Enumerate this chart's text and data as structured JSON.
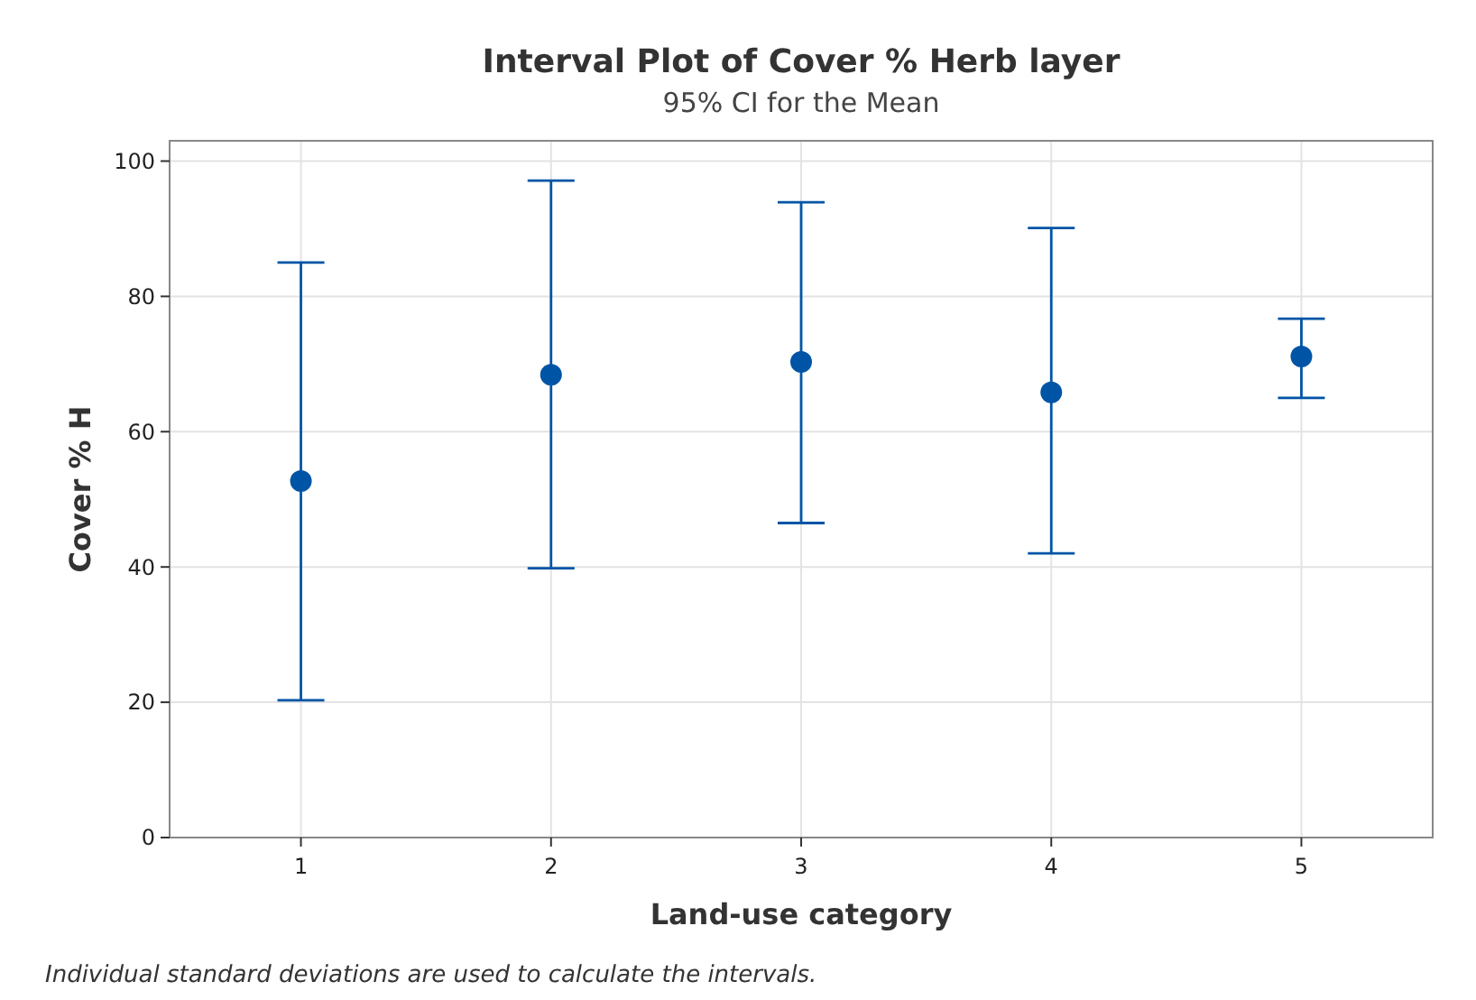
{
  "chart_data": {
    "type": "scatter",
    "title": "Interval Plot of Cover % Herb layer",
    "subtitle": "95% CI for the Mean",
    "xlabel": "Land-use category",
    "ylabel": "Cover % H",
    "annotations": [
      "Individual standard deviations are used to calculate the intervals."
    ],
    "categories": [
      "1",
      "2",
      "3",
      "4",
      "5"
    ],
    "series": [
      {
        "color": "#0054a6",
        "values": [
          52.7,
          68.4,
          70.3,
          65.8,
          71.1
        ],
        "errors": [
          [
            20.3,
            85
          ],
          [
            39.8,
            97.1
          ],
          [
            46.5,
            93.9
          ],
          [
            42,
            90.1
          ],
          [
            65,
            76.7
          ]
        ]
      }
    ],
    "ylim": [
      0,
      103
    ],
    "yticks": [
      0,
      20,
      40,
      60,
      80,
      100
    ],
    "grid": true,
    "marker": "circle"
  }
}
